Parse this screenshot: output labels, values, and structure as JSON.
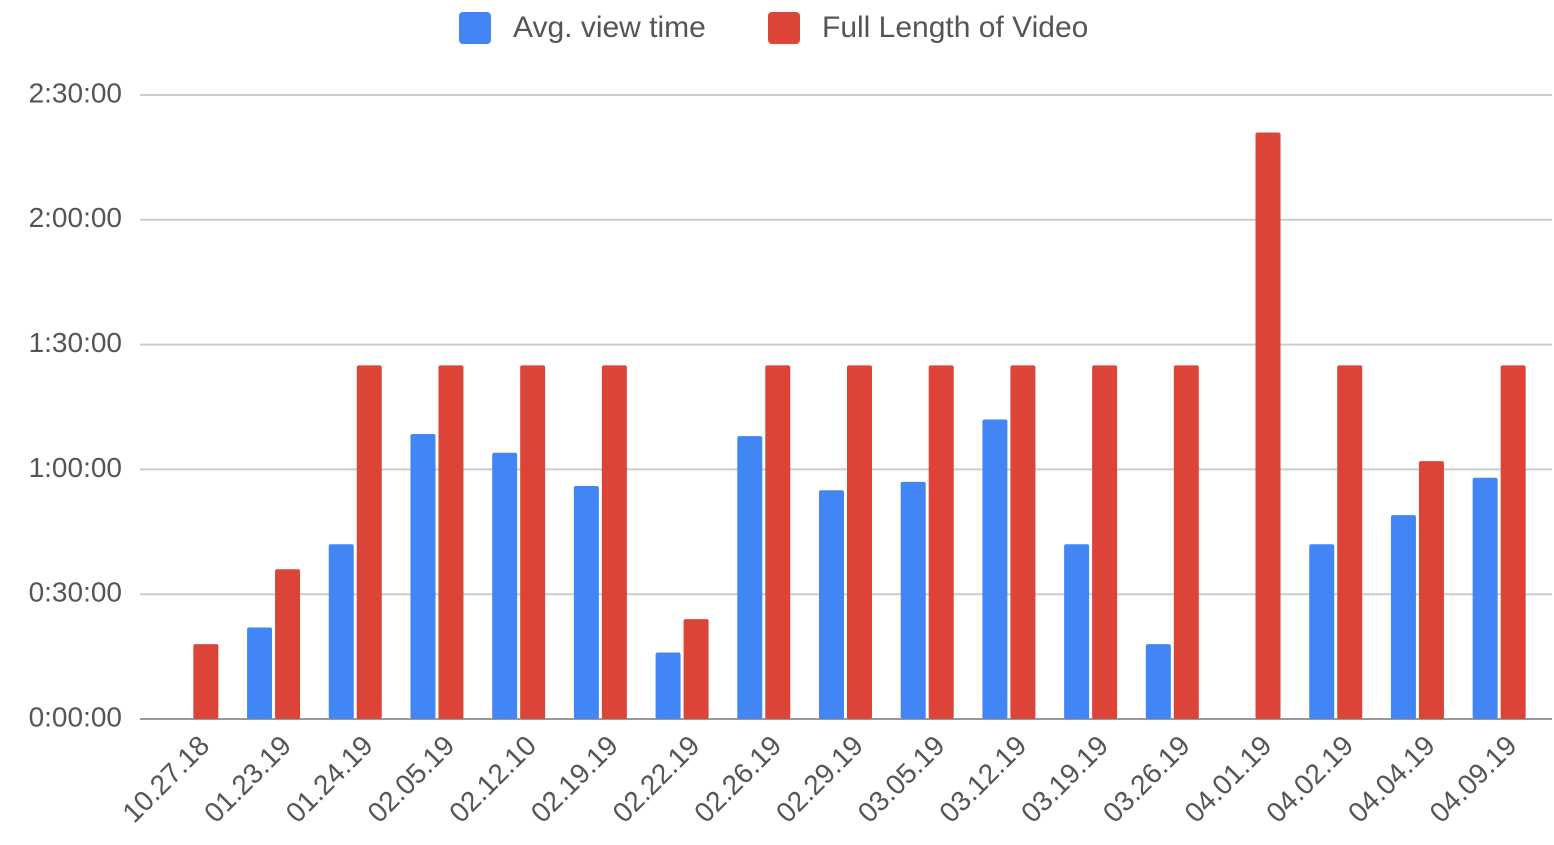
{
  "chart_data": {
    "type": "bar",
    "categories": [
      "10.27.18",
      "01.23.19",
      "01.24.19",
      "02.05.19",
      "02.12.10",
      "02.19.19",
      "02.22.19",
      "02.26.19",
      "02.29.19",
      "03.05.19",
      "03.12.19",
      "03.19.19",
      "03.26.19",
      "04.01.19",
      "04.02.19",
      "04.04.19",
      "04.09.19"
    ],
    "series": [
      {
        "name": "Avg. view time",
        "color": "#4285f4",
        "values": [
          null,
          22,
          42,
          68.5,
          64,
          56,
          16,
          68,
          55,
          57,
          72,
          42,
          18,
          null,
          42,
          49,
          58
        ]
      },
      {
        "name": "Full Length of Video",
        "color": "#db4437",
        "values": [
          18,
          36,
          85,
          85,
          85,
          85,
          24,
          85,
          85,
          85,
          85,
          85,
          85,
          141,
          85,
          62,
          85
        ]
      }
    ],
    "ylim": [
      0,
      150
    ],
    "yticks": [
      {
        "value": 0,
        "label": "0:00:00"
      },
      {
        "value": 30,
        "label": "0:30:00"
      },
      {
        "value": 60,
        "label": "1:00:00"
      },
      {
        "value": 90,
        "label": "1:30:00"
      },
      {
        "value": 120,
        "label": "2:00:00"
      },
      {
        "value": 150,
        "label": "2:30:00"
      }
    ],
    "grid": true,
    "legend": "top"
  }
}
